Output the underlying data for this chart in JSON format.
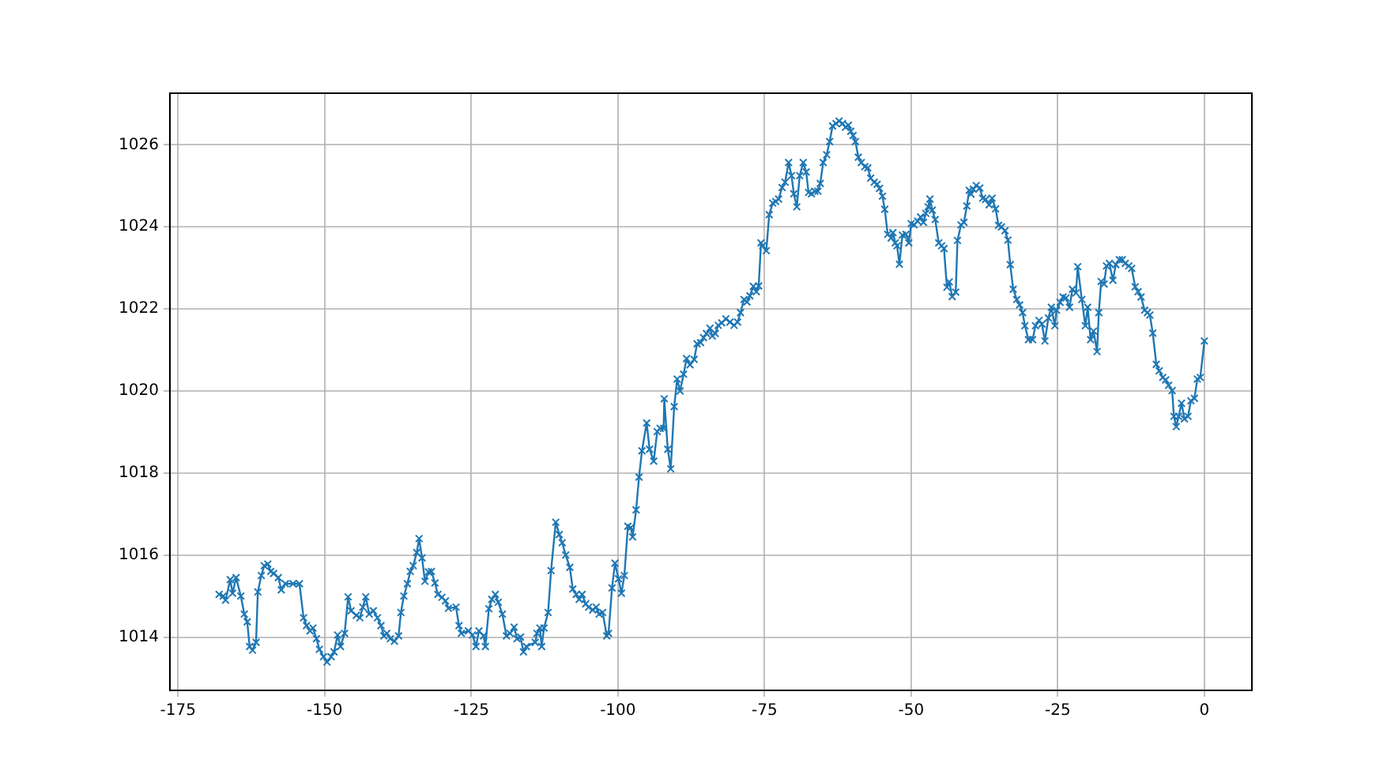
{
  "chart_data": {
    "type": "line",
    "x": [
      -168.0,
      -167.3,
      -166.9,
      -166.1,
      -165.7,
      -165.1,
      -164.3,
      -163.7,
      -163.2,
      -162.8,
      -162.3,
      -161.7,
      -161.4,
      -160.8,
      -160.3,
      -159.7,
      -159.2,
      -158.7,
      -157.9,
      -157.4,
      -156.7,
      -155.4,
      -154.3,
      -153.6,
      -153.1,
      -152.5,
      -152.0,
      -151.4,
      -150.9,
      -150.2,
      -149.6,
      -148.9,
      -148.4,
      -147.8,
      -147.3,
      -146.6,
      -146.0,
      -145.5,
      -144.6,
      -144.0,
      -143.5,
      -143.0,
      -142.4,
      -141.7,
      -141.0,
      -140.4,
      -139.9,
      -139.4,
      -138.8,
      -138.1,
      -137.4,
      -137.0,
      -136.5,
      -135.9,
      -135.4,
      -134.9,
      -134.3,
      -133.9,
      -133.4,
      -132.9,
      -132.3,
      -131.8,
      -131.2,
      -130.7,
      -130.0,
      -129.4,
      -128.9,
      -127.6,
      -127.1,
      -126.7,
      -125.5,
      -124.8,
      -124.2,
      -123.7,
      -122.9,
      -122.6,
      -122.0,
      -121.5,
      -120.9,
      -120.4,
      -119.7,
      -119.0,
      -118.4,
      -117.7,
      -117.2,
      -116.6,
      -116.1,
      -115.6,
      -114.1,
      -113.8,
      -113.3,
      -113.0,
      -112.6,
      -111.9,
      -111.4,
      -110.6,
      -110.0,
      -109.5,
      -108.9,
      -108.2,
      -107.7,
      -107.1,
      -106.6,
      -106.1,
      -105.5,
      -105.0,
      -104.3,
      -103.7,
      -103.2,
      -102.6,
      -101.9,
      -101.6,
      -101.0,
      -100.5,
      -99.9,
      -99.4,
      -98.9,
      -98.3,
      -97.8,
      -97.5,
      -96.9,
      -96.4,
      -95.9,
      -95.1,
      -94.6,
      -93.9,
      -93.3,
      -92.8,
      -92.2,
      -92.1,
      -91.5,
      -91.0,
      -90.4,
      -89.9,
      -89.4,
      -88.8,
      -88.3,
      -87.7,
      -87.0,
      -86.5,
      -85.9,
      -85.4,
      -84.9,
      -84.3,
      -83.9,
      -83.4,
      -82.9,
      -82.3,
      -81.6,
      -80.9,
      -80.2,
      -79.6,
      -79.1,
      -78.5,
      -78.0,
      -77.5,
      -76.9,
      -76.4,
      -76.0,
      -75.6,
      -75.3,
      -74.7,
      -74.2,
      -73.6,
      -73.1,
      -72.6,
      -72.0,
      -71.5,
      -70.9,
      -70.4,
      -70.0,
      -69.5,
      -69.0,
      -68.4,
      -67.9,
      -67.5,
      -67.0,
      -66.4,
      -65.9,
      -65.5,
      -65.0,
      -64.4,
      -63.9,
      -63.4,
      -62.8,
      -62.3,
      -61.7,
      -61.2,
      -60.7,
      -60.3,
      -59.9,
      -59.5,
      -59.0,
      -58.5,
      -57.9,
      -57.4,
      -56.9,
      -56.3,
      -55.8,
      -55.4,
      -54.9,
      -54.5,
      -54.0,
      -53.4,
      -53.1,
      -52.7,
      -52.4,
      -52.0,
      -51.5,
      -50.9,
      -50.4,
      -50.0,
      -49.5,
      -48.9,
      -48.4,
      -47.9,
      -47.5,
      -47.1,
      -46.8,
      -46.4,
      -45.9,
      -45.3,
      -44.8,
      -44.4,
      -43.9,
      -43.5,
      -43.0,
      -42.4,
      -42.1,
      -41.5,
      -41.0,
      -40.5,
      -40.1,
      -39.8,
      -39.4,
      -38.9,
      -38.3,
      -37.8,
      -37.3,
      -36.7,
      -36.2,
      -35.6,
      -35.1,
      -34.6,
      -34.0,
      -33.5,
      -33.1,
      -32.6,
      -32.0,
      -31.5,
      -31.0,
      -30.6,
      -30.0,
      -29.3,
      -28.8,
      -28.2,
      -27.7,
      -27.2,
      -26.6,
      -26.1,
      -25.5,
      -25.2,
      -24.6,
      -24.1,
      -23.6,
      -23.0,
      -22.5,
      -21.9,
      -21.6,
      -20.9,
      -20.3,
      -19.9,
      -19.4,
      -18.9,
      -18.3,
      -18.0,
      -17.6,
      -17.1,
      -16.7,
      -16.2,
      -15.6,
      -15.1,
      -14.5,
      -14.0,
      -13.5,
      -12.9,
      -12.4,
      -11.8,
      -11.3,
      -10.8,
      -10.2,
      -9.7,
      -9.3,
      -8.8,
      -8.2,
      -7.7,
      -7.1,
      -6.6,
      -6.1,
      -5.5,
      -5.2,
      -4.8,
      -4.4,
      -3.9,
      -3.4,
      -2.8,
      -2.3,
      -1.7,
      -1.2,
      -0.7,
      0.0
    ],
    "series": [
      {
        "color": "#1f77b4",
        "values": [
          1015.04,
          1015.0,
          1014.9,
          1015.4,
          1015.07,
          1015.45,
          1015.0,
          1014.56,
          1014.37,
          1013.77,
          1013.68,
          1013.87,
          1015.1,
          1015.5,
          1015.74,
          1015.78,
          1015.6,
          1015.55,
          1015.45,
          1015.15,
          1015.3,
          1015.3,
          1015.3,
          1014.47,
          1014.28,
          1014.15,
          1014.22,
          1013.96,
          1013.7,
          1013.52,
          1013.39,
          1013.52,
          1013.64,
          1014.05,
          1013.77,
          1014.09,
          1014.98,
          1014.64,
          1014.53,
          1014.47,
          1014.73,
          1014.98,
          1014.56,
          1014.64,
          1014.47,
          1014.28,
          1014.03,
          1014.09,
          1013.96,
          1013.9,
          1014.03,
          1014.6,
          1015.0,
          1015.3,
          1015.6,
          1015.74,
          1016.06,
          1016.4,
          1015.93,
          1015.36,
          1015.59,
          1015.6,
          1015.32,
          1015.04,
          1014.97,
          1014.88,
          1014.7,
          1014.73,
          1014.28,
          1014.09,
          1014.15,
          1014.05,
          1013.77,
          1014.15,
          1014.03,
          1013.77,
          1014.69,
          1014.92,
          1015.04,
          1014.85,
          1014.56,
          1014.03,
          1014.09,
          1014.24,
          1013.96,
          1014.0,
          1013.64,
          1013.77,
          1013.87,
          1014.09,
          1014.22,
          1013.77,
          1014.22,
          1014.6,
          1015.62,
          1016.8,
          1016.5,
          1016.3,
          1016.0,
          1015.7,
          1015.17,
          1015.04,
          1014.92,
          1015.04,
          1014.81,
          1014.73,
          1014.66,
          1014.73,
          1014.56,
          1014.6,
          1014.03,
          1014.09,
          1015.2,
          1015.8,
          1015.42,
          1015.07,
          1015.5,
          1016.7,
          1016.67,
          1016.44,
          1017.1,
          1017.9,
          1018.54,
          1019.22,
          1018.58,
          1018.29,
          1019.01,
          1019.09,
          1019.09,
          1019.81,
          1018.58,
          1018.1,
          1019.62,
          1020.29,
          1020.0,
          1020.41,
          1020.79,
          1020.64,
          1020.77,
          1021.15,
          1021.18,
          1021.3,
          1021.4,
          1021.53,
          1021.34,
          1021.4,
          1021.6,
          1021.66,
          1021.76,
          1021.68,
          1021.6,
          1021.68,
          1021.91,
          1022.23,
          1022.17,
          1022.32,
          1022.55,
          1022.42,
          1022.56,
          1023.61,
          1023.54,
          1023.42,
          1024.3,
          1024.58,
          1024.62,
          1024.68,
          1024.96,
          1025.09,
          1025.57,
          1025.25,
          1024.81,
          1024.49,
          1025.25,
          1025.57,
          1025.34,
          1024.84,
          1024.81,
          1024.87,
          1024.87,
          1025.06,
          1025.57,
          1025.76,
          1026.08,
          1026.46,
          1026.52,
          1026.58,
          1026.52,
          1026.43,
          1026.48,
          1026.33,
          1026.23,
          1026.08,
          1025.7,
          1025.57,
          1025.47,
          1025.44,
          1025.19,
          1025.09,
          1025.04,
          1024.94,
          1024.75,
          1024.43,
          1023.82,
          1023.73,
          1023.86,
          1023.61,
          1023.54,
          1023.09,
          1023.8,
          1023.82,
          1023.61,
          1024.08,
          1024.05,
          1024.14,
          1024.24,
          1024.11,
          1024.33,
          1024.49,
          1024.68,
          1024.41,
          1024.18,
          1023.61,
          1023.54,
          1023.47,
          1022.53,
          1022.66,
          1022.3,
          1022.41,
          1023.67,
          1024.05,
          1024.11,
          1024.51,
          1024.89,
          1024.8,
          1024.92,
          1025.01,
          1024.95,
          1024.7,
          1024.67,
          1024.54,
          1024.7,
          1024.44,
          1024.04,
          1024.0,
          1023.91,
          1023.68,
          1023.08,
          1022.48,
          1022.23,
          1022.1,
          1021.91,
          1021.59,
          1021.25,
          1021.25,
          1021.59,
          1021.72,
          1021.63,
          1021.22,
          1021.78,
          1022.04,
          1021.59,
          1021.97,
          1022.16,
          1022.29,
          1022.27,
          1022.04,
          1022.48,
          1022.39,
          1023.03,
          1022.23,
          1021.59,
          1022.04,
          1021.25,
          1021.46,
          1020.96,
          1021.91,
          1022.67,
          1022.61,
          1023.05,
          1023.11,
          1022.7,
          1023.08,
          1023.2,
          1023.2,
          1023.11,
          1023.05,
          1022.99,
          1022.54,
          1022.42,
          1022.29,
          1021.97,
          1021.91,
          1021.85,
          1021.41,
          1020.65,
          1020.49,
          1020.33,
          1020.27,
          1020.14,
          1020.01,
          1019.38,
          1019.13,
          1019.38,
          1019.7,
          1019.32,
          1019.38,
          1019.76,
          1019.82,
          1020.29,
          1020.33,
          1021.22
        ]
      }
    ],
    "xlim": [
      -176.4,
      8.1
    ],
    "xticks": [
      -175,
      -150,
      -125,
      -100,
      -75,
      -50,
      -25,
      0
    ],
    "ylim": [
      1012.7,
      1027.26
    ],
    "yticks": [
      1014,
      1016,
      1018,
      1020,
      1022,
      1024,
      1026
    ],
    "grid": true,
    "marker": "cross",
    "line_style": "solid"
  }
}
